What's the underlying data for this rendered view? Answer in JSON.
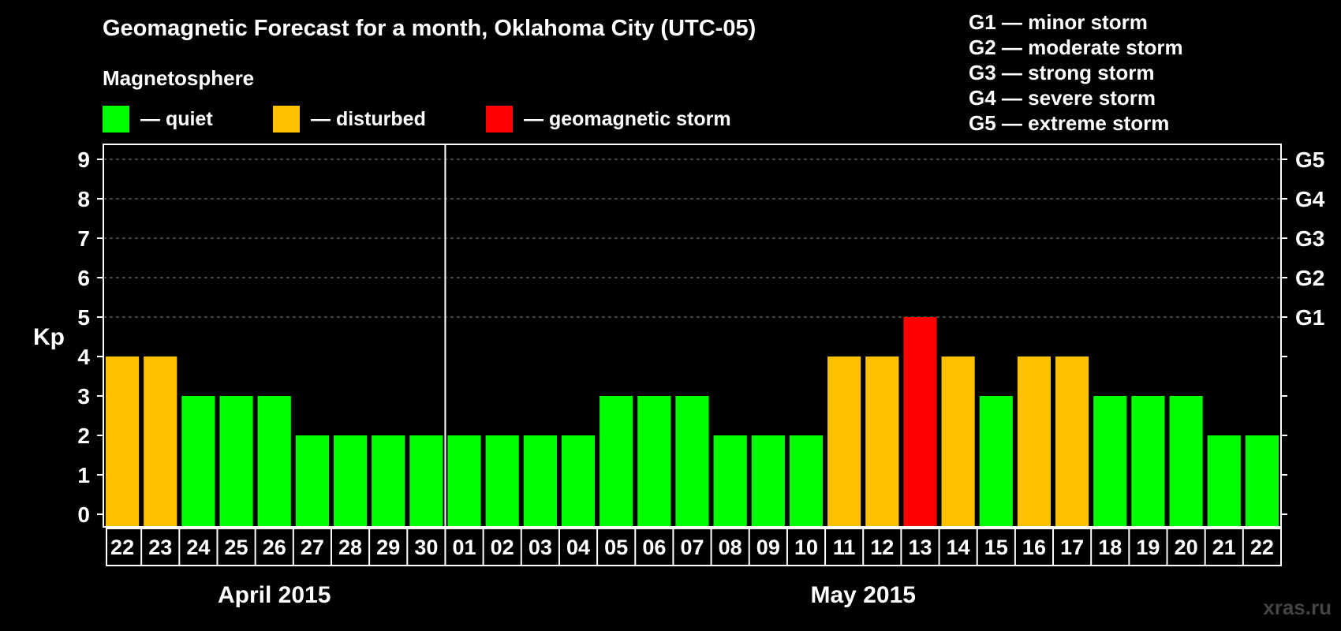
{
  "header": {
    "title": "Geomagnetic Forecast for a month, Oklahoma City (UTC-05)",
    "magnetosphere_label": "Magnetosphere"
  },
  "legend": [
    {
      "label": "— quiet",
      "color": "#00ff00"
    },
    {
      "label": "— disturbed",
      "color": "#ffc000"
    },
    {
      "label": "— geomagnetic storm",
      "color": "#ff0000"
    }
  ],
  "storm_scale": [
    "G1 — minor storm",
    "G2 — moderate storm",
    "G3 — strong storm",
    "G4 — severe storm",
    "G5 — extreme storm"
  ],
  "watermark": "xras.ru",
  "chart_data": {
    "type": "bar",
    "ylabel": "Kp",
    "ylim": [
      0,
      9
    ],
    "yticks": [
      0,
      1,
      2,
      3,
      4,
      5,
      6,
      7,
      8,
      9
    ],
    "right_axis": [
      {
        "kp": 5,
        "label": "G1"
      },
      {
        "kp": 6,
        "label": "G2"
      },
      {
        "kp": 7,
        "label": "G3"
      },
      {
        "kp": 8,
        "label": "G4"
      },
      {
        "kp": 9,
        "label": "G5"
      }
    ],
    "categories": [
      "22",
      "23",
      "24",
      "25",
      "26",
      "27",
      "28",
      "29",
      "30",
      "01",
      "02",
      "03",
      "04",
      "05",
      "06",
      "07",
      "08",
      "09",
      "10",
      "11",
      "12",
      "13",
      "14",
      "15",
      "16",
      "17",
      "18",
      "19",
      "20",
      "21",
      "22"
    ],
    "values": [
      4,
      4,
      3,
      3,
      3,
      2,
      2,
      2,
      2,
      2,
      2,
      2,
      2,
      3,
      3,
      3,
      2,
      2,
      2,
      4,
      4,
      5,
      4,
      3,
      4,
      4,
      3,
      3,
      3,
      2,
      2
    ],
    "levels": [
      "disturbed",
      "disturbed",
      "quiet",
      "quiet",
      "quiet",
      "quiet",
      "quiet",
      "quiet",
      "quiet",
      "quiet",
      "quiet",
      "quiet",
      "quiet",
      "quiet",
      "quiet",
      "quiet",
      "quiet",
      "quiet",
      "quiet",
      "disturbed",
      "disturbed",
      "storm",
      "disturbed",
      "quiet",
      "disturbed",
      "disturbed",
      "quiet",
      "quiet",
      "quiet",
      "quiet",
      "quiet"
    ],
    "level_colors": {
      "quiet": "#00ff00",
      "disturbed": "#ffc000",
      "storm": "#ff0000"
    },
    "months": [
      {
        "label": "April 2015",
        "start": 0,
        "count": 9
      },
      {
        "label": "May 2015",
        "start": 9,
        "count": 22
      }
    ]
  }
}
